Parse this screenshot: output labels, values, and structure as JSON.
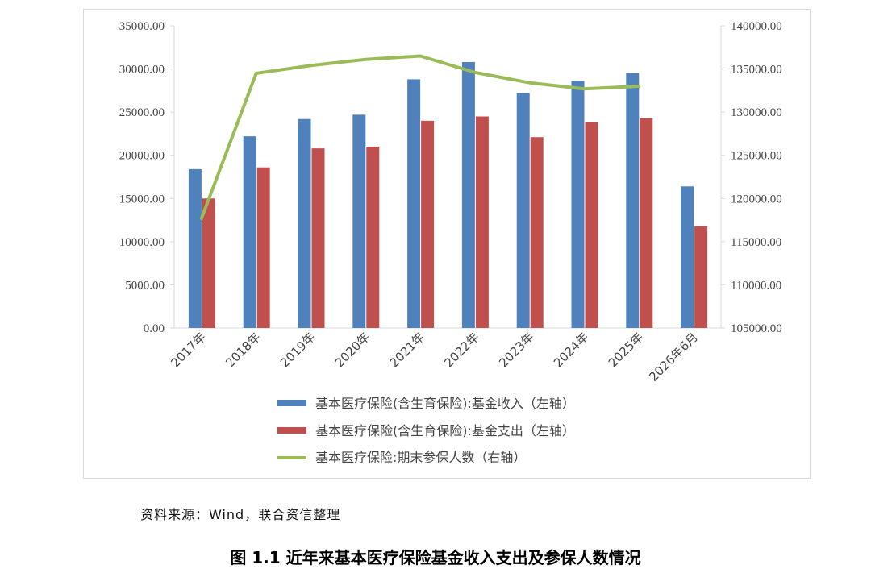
{
  "source_note": "资料来源：Wind，联合资信整理",
  "caption": "图 1.1  近年来基本医疗保险基金收入支出及参保人数情况",
  "colors": {
    "income": "#4f81bd",
    "expense": "#c0504d",
    "insured": "#9bbb59",
    "axis": "#d9d9d9"
  },
  "chart_data": {
    "type": "bar",
    "categories": [
      "2017年",
      "2018年",
      "2019年",
      "2020年",
      "2021年",
      "2022年",
      "2023年",
      "2024年",
      "2025年",
      "2026年6月"
    ],
    "series": [
      {
        "name": "基本医疗保险(含生育保险):基金收入（左轴）",
        "type": "bar",
        "axis": "left",
        "values": [
          18400,
          22200,
          24200,
          24700,
          28800,
          30800,
          27200,
          28600,
          29500,
          16400
        ]
      },
      {
        "name": "基本医疗保险(含生育保险):基金支出（左轴）",
        "type": "bar",
        "axis": "left",
        "values": [
          15000,
          18600,
          20800,
          21000,
          24000,
          24500,
          22100,
          23800,
          24300,
          11800
        ]
      },
      {
        "name": "基本医疗保险:期末参保人数（右轴）",
        "type": "line",
        "axis": "right",
        "values": [
          117700,
          134500,
          135400,
          136100,
          136500,
          134600,
          133400,
          132700,
          133000,
          null
        ]
      }
    ],
    "ylim_left": [
      0,
      35000
    ],
    "ylim_right": [
      105000,
      140000
    ],
    "yticks_left": [
      "0.00",
      "5000.00",
      "10000.00",
      "15000.00",
      "20000.00",
      "25000.00",
      "30000.00",
      "35000.00"
    ],
    "yticks_right": [
      "105000.00",
      "110000.00",
      "115000.00",
      "120000.00",
      "125000.00",
      "130000.00",
      "135000.00",
      "140000.00"
    ],
    "grid": false,
    "legend_position": "bottom"
  }
}
